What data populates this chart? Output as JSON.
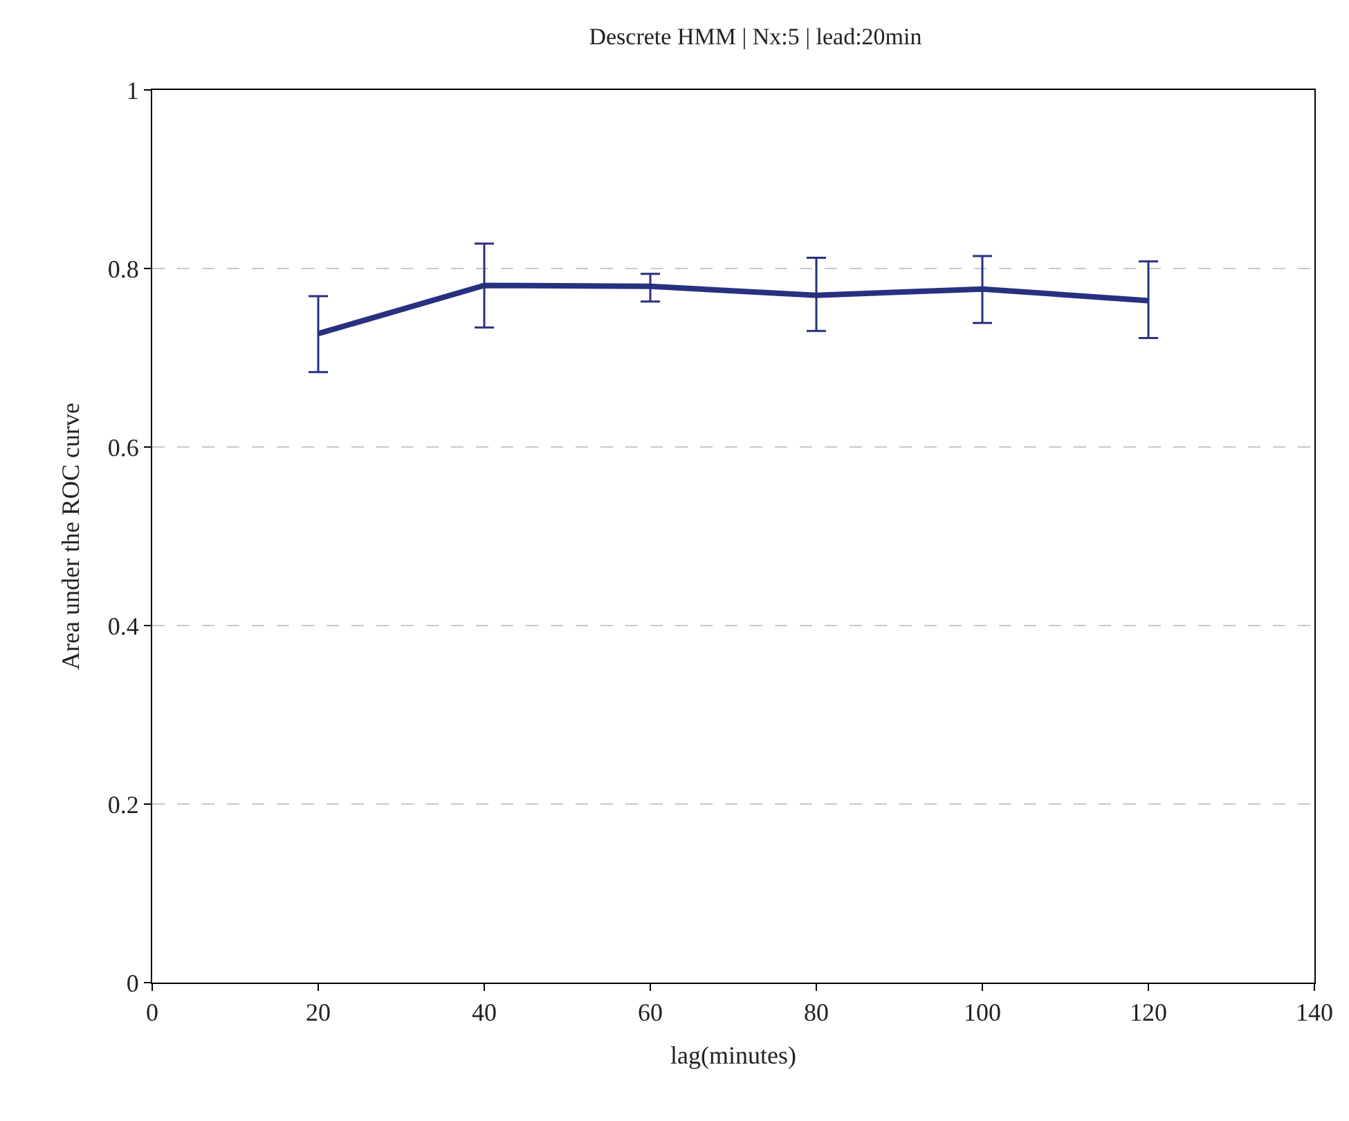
{
  "chart_data": {
    "type": "line",
    "title": "Descrete HMM | Nx:5 | lead:20min",
    "xlabel": "lag(minutes)",
    "ylabel": "Area under the ROC curve",
    "x": [
      20,
      40,
      60,
      80,
      100,
      120
    ],
    "series": [
      {
        "color": "#283080",
        "values": [
          0.727,
          0.781,
          0.78,
          0.77,
          0.777,
          0.764
        ],
        "errors": [
          [
            0.684,
            0.769
          ],
          [
            0.734,
            0.828
          ],
          [
            0.763,
            0.794
          ],
          [
            0.73,
            0.812
          ],
          [
            0.739,
            0.814
          ],
          [
            0.722,
            0.808
          ]
        ]
      }
    ],
    "xlim": [
      0,
      140
    ],
    "xticks": [
      0,
      20,
      40,
      60,
      80,
      100,
      120,
      140
    ],
    "ylim": [
      0,
      1
    ],
    "yticks": [
      0,
      0.2,
      0.4,
      0.6,
      0.8,
      1
    ],
    "grid": "y",
    "marker": "none",
    "line_style": "solid"
  }
}
